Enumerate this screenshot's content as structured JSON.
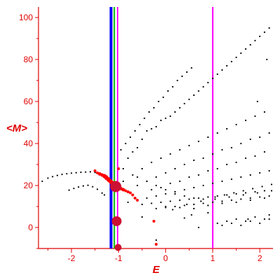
{
  "chart_data": {
    "type": "scatter",
    "xlabel": "E",
    "ylabel": "<M>",
    "xlim": [
      -2.7,
      2.28
    ],
    "ylim": [
      -10,
      105
    ],
    "x_ticks": [
      -2,
      -1,
      0,
      1,
      2
    ],
    "y_ticks": [
      0,
      20,
      40,
      60,
      80,
      100
    ],
    "x_tick_labels": [
      "-2",
      "-1",
      "0",
      "1",
      "2"
    ],
    "y_tick_labels": [
      "0",
      "20",
      "40",
      "60",
      "80",
      "100"
    ],
    "grid": false,
    "colors": {
      "axis": "#e00000",
      "points": "#000000",
      "highlight": "#ff0000",
      "highlight_large": "#cc1133",
      "line_blue": "#0000ff",
      "line_green": "#00bb00",
      "line_magenta": "#ff00ff"
    },
    "vertical_lines": [
      {
        "x": -1.16,
        "color": "#0000ff",
        "width": 4
      },
      {
        "x": -1.09,
        "color": "#00bb00",
        "width": 2
      },
      {
        "x": -1.02,
        "color": "#ff00ff",
        "width": 2
      },
      {
        "x": 1.0,
        "color": "#ff00ff",
        "width": 2
      }
    ],
    "series": [
      {
        "color": "#000000",
        "size": 1.1,
        "x": [
          -2.62,
          -2.5,
          -2.4,
          -2.3,
          -2.2,
          -2.1,
          -2.0,
          -1.9,
          -1.8,
          -1.7,
          -1.6,
          -1.5,
          -1.4,
          -2.05,
          -1.95,
          -1.85,
          -1.75,
          -1.65,
          -1.55,
          -1.45,
          -1.35,
          -1.3,
          -0.95,
          -0.85,
          -0.75,
          -0.65,
          -0.55,
          -0.45,
          -0.35,
          -0.25,
          -0.15,
          -0.05,
          0.05,
          0.15,
          0.25,
          0.35,
          0.45,
          0.55,
          -0.9,
          -0.8,
          -0.7,
          -0.6,
          -0.5,
          -0.4,
          -0.3,
          -0.2,
          -0.1,
          0.0,
          0.1,
          0.2,
          0.3,
          0.4,
          0.5,
          0.6,
          0.7,
          0.8,
          0.9,
          1.0,
          1.1,
          1.2,
          1.3,
          1.4,
          1.5,
          1.6,
          1.7,
          1.8,
          1.9,
          2.0,
          2.1,
          2.2,
          -0.9,
          -0.7,
          -0.5,
          -0.3,
          -0.1,
          0.1,
          0.3,
          0.5,
          0.7,
          0.9,
          1.1,
          1.3,
          1.5,
          1.7,
          1.9,
          2.1,
          -0.6,
          -0.4,
          -0.2,
          0.0,
          0.2,
          0.4,
          0.6,
          0.8,
          1.0,
          1.2,
          1.4,
          1.6,
          1.8,
          2.0,
          2.2,
          -0.3,
          -0.1,
          0.1,
          0.3,
          0.5,
          0.7,
          0.9,
          1.1,
          1.3,
          1.5,
          1.7,
          1.9,
          2.1,
          -0.8,
          -0.6,
          -0.4,
          -0.2,
          0.0,
          0.2,
          0.4,
          0.6,
          0.8,
          1.0,
          1.2,
          1.4,
          1.6,
          1.8,
          2.0,
          2.2,
          -0.5,
          -0.3,
          -0.1,
          0.1,
          0.3,
          0.5,
          0.7,
          0.9,
          1.1,
          1.3,
          1.5,
          1.7,
          1.9,
          2.1,
          -0.2,
          0.0,
          0.2,
          0.4,
          0.6,
          0.8,
          1.0,
          1.2,
          1.4,
          1.6,
          1.8,
          2.0,
          2.2,
          0.0,
          0.15,
          0.3,
          0.45,
          0.6,
          0.75,
          0.9,
          1.05,
          1.2,
          1.35,
          1.5,
          1.65,
          1.8,
          1.95,
          2.1,
          2.25,
          -0.6,
          -0.4,
          -0.2,
          0.0,
          0.2,
          0.4,
          0.6,
          0.8,
          1.05,
          1.25,
          1.45,
          1.65,
          1.85,
          2.05,
          2.25,
          1.1,
          1.3,
          1.5,
          1.7,
          1.9,
          2.1,
          2.2,
          0.9,
          1.2,
          1.4,
          1.6,
          1.8,
          2.0,
          2.2,
          -0.5,
          0.4,
          0.7,
          -0.2,
          0.55,
          1.75,
          1.95,
          2.15
        ],
        "y": [
          22.0,
          23.5,
          24.2,
          24.8,
          25.3,
          25.6,
          25.9,
          26.1,
          26.3,
          26.4,
          26.5,
          26.2,
          25.6,
          17.8,
          18.6,
          19.3,
          19.8,
          20.1,
          19.4,
          18.2,
          16.4,
          15.5,
          37.0,
          40.0,
          43.0,
          46.0,
          49.0,
          52.0,
          55.0,
          57.0,
          60.0,
          62.0,
          65.0,
          67.0,
          70.0,
          72.0,
          74.0,
          76.0,
          28.0,
          33.0,
          36.0,
          38.0,
          42.0,
          46.0,
          47.0,
          48.0,
          51.0,
          52.0,
          53.0,
          55.0,
          57.0,
          59.0,
          61.0,
          63.0,
          65.0,
          67.0,
          69.0,
          71.0,
          73.0,
          75.0,
          77.0,
          79.0,
          81.0,
          83.0,
          85.0,
          87.0,
          89.0,
          91.0,
          93.0,
          95.0,
          22.0,
          25.0,
          28.0,
          31.0,
          33.0,
          35.0,
          37.0,
          39.0,
          41.0,
          43.0,
          45.0,
          47.0,
          49.0,
          51.0,
          53.0,
          55.0,
          20.0,
          22.0,
          24.0,
          26.0,
          28.0,
          30.0,
          32.0,
          33.0,
          35.0,
          37.0,
          38.0,
          40.0,
          42.0,
          43.0,
          45.0,
          18.0,
          19.0,
          21.0,
          22.0,
          24.0,
          25.0,
          27.0,
          28.0,
          30.0,
          31.0,
          33.0,
          34.0,
          36.0,
          12.0,
          13.0,
          14.0,
          15.0,
          16.0,
          17.0,
          18.0,
          19.0,
          20.0,
          21.0,
          22.0,
          23.0,
          24.0,
          25.0,
          26.0,
          27.0,
          11.0,
          11.5,
          12.0,
          12.5,
          13.0,
          13.5,
          14.0,
          14.5,
          15.0,
          15.5,
          16.0,
          16.5,
          17.0,
          17.5,
          9.0,
          9.5,
          10.0,
          10.5,
          11.0,
          11.5,
          12.0,
          12.5,
          13.0,
          13.5,
          14.0,
          14.5,
          15.0,
          10.0,
          8.5,
          9.5,
          11.0,
          9.0,
          12.5,
          10.5,
          13.5,
          11.5,
          14.5,
          12.0,
          15.5,
          13.0,
          16.5,
          14.0,
          17.5,
          24.0,
          22.0,
          20.0,
          18.0,
          16.0,
          15.0,
          14.0,
          13.5,
          14.5,
          15.5,
          16.5,
          17.5,
          18.5,
          19.5,
          20.5,
          2.0,
          3.0,
          4.0,
          3.0,
          5.0,
          4.0,
          6.0,
          7.0,
          1.0,
          2.0,
          1.0,
          3.0,
          2.0,
          4.0,
          5.0,
          4.5,
          0.0,
          -6.0,
          6.0,
          4.0,
          60.0,
          80.0
        ]
      },
      {
        "color": "#ff0000",
        "size": 2,
        "x": [
          -1.5,
          -1.45,
          -1.4,
          -1.35,
          -1.3,
          -1.27,
          -1.25,
          -1.22,
          -1.2,
          -1.17,
          -1.15,
          -1.12,
          -1.1,
          -1.07,
          -1.05,
          -1.0,
          -0.95,
          -0.9,
          -0.85,
          -0.8,
          -0.75,
          -0.7,
          -0.65,
          -0.6,
          -1.0,
          -0.25,
          -0.2
        ],
        "y": [
          27.0,
          26.0,
          25.5,
          25.0,
          24.5,
          24.0,
          23.5,
          23.0,
          22.5,
          22.0,
          21.5,
          21.0,
          20.5,
          20.0,
          19.5,
          19.0,
          18.5,
          18.0,
          17.5,
          17.0,
          16.5,
          15.5,
          14.0,
          13.0,
          28.0,
          3.0,
          -8.0
        ],
        "sizes": [
          2,
          2,
          2.5,
          2.5,
          3,
          3,
          3,
          3,
          3,
          3,
          3,
          3,
          3,
          3,
          3,
          3,
          2.5,
          2.5,
          2,
          2,
          2,
          2,
          2,
          2,
          2,
          2,
          2
        ]
      },
      {
        "color": "#cc1133",
        "size": 8,
        "x": [
          -1.06,
          -1.04,
          -1.01
        ],
        "y": [
          19.5,
          3.0,
          -9.5
        ],
        "sizes": [
          8,
          7,
          5
        ]
      }
    ]
  }
}
